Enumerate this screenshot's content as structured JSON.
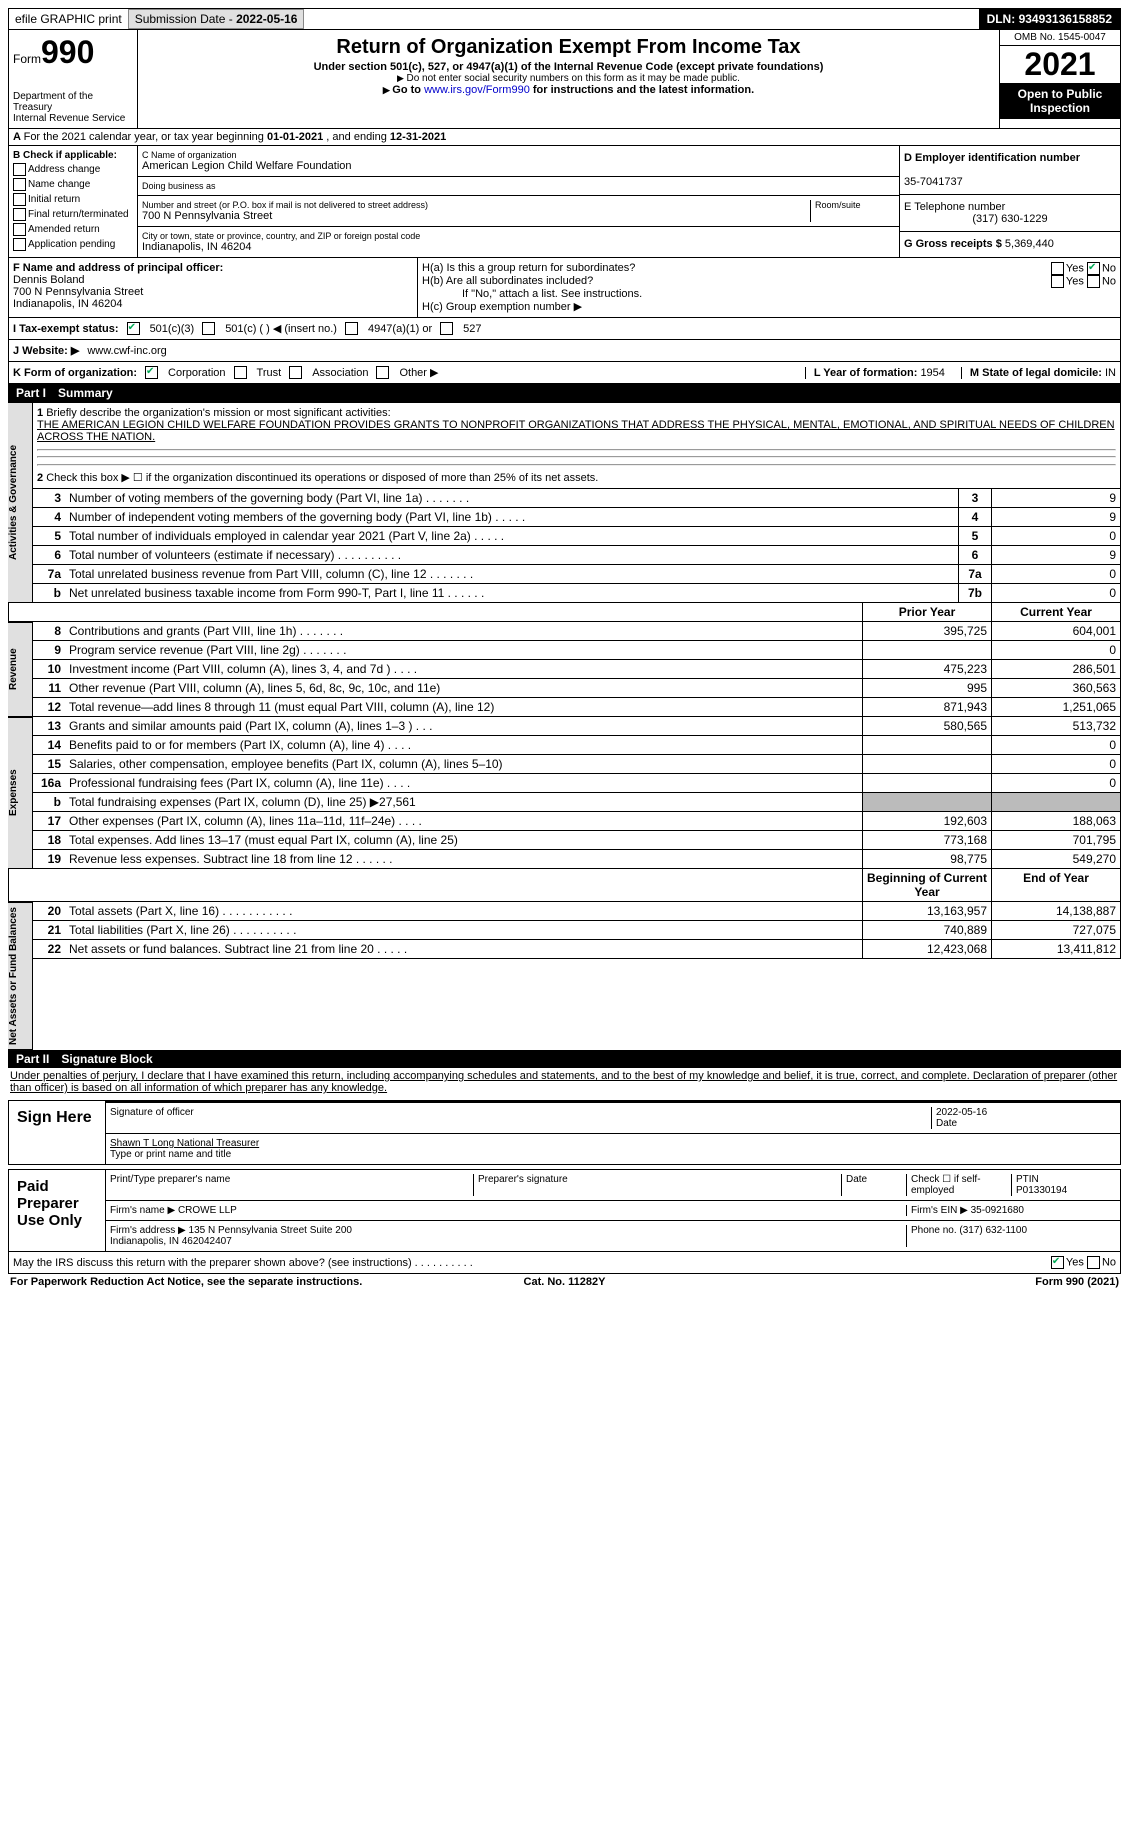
{
  "topbar": {
    "efile": "efile GRAPHIC print",
    "submission_label": "Submission Date - ",
    "submission_date": "2022-05-16",
    "dln_label": "DLN: ",
    "dln": "93493136158852"
  },
  "header": {
    "form_word": "Form",
    "form_number": "990",
    "dept": "Department of the Treasury\nInternal Revenue Service",
    "title": "Return of Organization Exempt From Income Tax",
    "subtitle": "Under section 501(c), 527, or 4947(a)(1) of the Internal Revenue Code (except private foundations)",
    "ssn_note": "Do not enter social security numbers on this form as it may be made public.",
    "goto_pre": "Go to ",
    "goto_link": "www.irs.gov/Form990",
    "goto_post": " for instructions and the latest information.",
    "omb": "OMB No. 1545-0047",
    "year": "2021",
    "public": "Open to Public Inspection"
  },
  "sectionA": {
    "text_pre": "For the 2021 calendar year, or tax year beginning ",
    "begin": "01-01-2021",
    "mid": " , and ending ",
    "end": "12-31-2021"
  },
  "B": {
    "label": "B Check if applicable:",
    "opts": [
      "Address change",
      "Name change",
      "Initial return",
      "Final return/terminated",
      "Amended return",
      "Application pending"
    ]
  },
  "C": {
    "name_label": "C Name of organization",
    "name": "American Legion Child Welfare Foundation",
    "dba_label": "Doing business as",
    "dba": "",
    "street_label": "Number and street (or P.O. box if mail is not delivered to street address)",
    "room_label": "Room/suite",
    "street": "700 N Pennsylvania Street",
    "city_label": "City or town, state or province, country, and ZIP or foreign postal code",
    "city": "Indianapolis, IN  46204"
  },
  "D": {
    "label": "D Employer identification number",
    "value": "35-7041737"
  },
  "E": {
    "label": "E Telephone number",
    "value": "(317) 630-1229"
  },
  "G": {
    "label": "G Gross receipts $ ",
    "value": "5,369,440"
  },
  "F": {
    "label": "F  Name and address of principal officer:",
    "name": "Dennis Boland",
    "street": "700 N Pennsylvania Street",
    "city": "Indianapolis, IN  46204"
  },
  "H": {
    "a": "H(a)  Is this a group return for subordinates?",
    "b": "H(b)  Are all subordinates included?",
    "b_note": "If \"No,\" attach a list. See instructions.",
    "c": "H(c)  Group exemption number ▶"
  },
  "I": {
    "label": "I  Tax-exempt status:",
    "opts": [
      "501(c)(3)",
      "501(c) (  ) ◀ (insert no.)",
      "4947(a)(1) or",
      "527"
    ]
  },
  "J": {
    "label": "J  Website: ▶",
    "value": "www.cwf-inc.org"
  },
  "K": {
    "label": "K Form of organization:",
    "opts": [
      "Corporation",
      "Trust",
      "Association",
      "Other ▶"
    ]
  },
  "L": {
    "label": "L Year of formation: ",
    "value": "1954"
  },
  "M": {
    "label": "M State of legal domicile: ",
    "value": "IN"
  },
  "part1": {
    "num": "Part I",
    "title": "Summary"
  },
  "summary": {
    "q1_label": "Briefly describe the organization's mission or most significant activities:",
    "q1_text": "THE AMERICAN LEGION CHILD WELFARE FOUNDATION PROVIDES GRANTS TO NONPROFIT ORGANIZATIONS THAT ADDRESS THE PHYSICAL, MENTAL, EMOTIONAL, AND SPIRITUAL NEEDS OF CHILDREN ACROSS THE NATION.",
    "q2": "Check this box ▶ ☐ if the organization discontinued its operations or disposed of more than 25% of its net assets.",
    "lines_top": [
      {
        "n": "3",
        "label": "Number of voting members of the governing body (Part VI, line 1a)  .    .    .    .    .    .    .",
        "box": "3",
        "val": "9"
      },
      {
        "n": "4",
        "label": "Number of independent voting members of the governing body (Part VI, line 1b)  .    .    .    .    .",
        "box": "4",
        "val": "9"
      },
      {
        "n": "5",
        "label": "Total number of individuals employed in calendar year 2021 (Part V, line 2a)  .    .    .    .    .",
        "box": "5",
        "val": "0"
      },
      {
        "n": "6",
        "label": "Total number of volunteers (estimate if necessary)    .    .    .    .    .    .    .    .    .    .",
        "box": "6",
        "val": "9"
      },
      {
        "n": "7a",
        "label": "Total unrelated business revenue from Part VIII, column (C), line 12  .    .    .    .    .    .    .",
        "box": "7a",
        "val": "0"
      },
      {
        "n": "b",
        "label": "Net unrelated business taxable income from Form 990-T, Part I, line 11  .    .    .    .    .    .",
        "box": "7b",
        "val": "0"
      }
    ],
    "col_hdr_prior": "Prior Year",
    "col_hdr_current": "Current Year",
    "revenue_label": "Revenue",
    "revenue": [
      {
        "n": "8",
        "label": "Contributions and grants (Part VIII, line 1h)   .    .    .    .    .    .    .",
        "prior": "395,725",
        "cur": "604,001"
      },
      {
        "n": "9",
        "label": "Program service revenue (Part VIII, line 2g)   .    .    .    .    .    .    .",
        "prior": "",
        "cur": "0"
      },
      {
        "n": "10",
        "label": "Investment income (Part VIII, column (A), lines 3, 4, and 7d )   .    .    .    .",
        "prior": "475,223",
        "cur": "286,501"
      },
      {
        "n": "11",
        "label": "Other revenue (Part VIII, column (A), lines 5, 6d, 8c, 9c, 10c, and 11e)",
        "prior": "995",
        "cur": "360,563"
      },
      {
        "n": "12",
        "label": "Total revenue—add lines 8 through 11 (must equal Part VIII, column (A), line 12)",
        "prior": "871,943",
        "cur": "1,251,065"
      }
    ],
    "expenses_label": "Expenses",
    "expenses": [
      {
        "n": "13",
        "label": "Grants and similar amounts paid (Part IX, column (A), lines 1–3 )   .    .    .",
        "prior": "580,565",
        "cur": "513,732"
      },
      {
        "n": "14",
        "label": "Benefits paid to or for members (Part IX, column (A), line 4)   .    .    .    .",
        "prior": "",
        "cur": "0"
      },
      {
        "n": "15",
        "label": "Salaries, other compensation, employee benefits (Part IX, column (A), lines 5–10)",
        "prior": "",
        "cur": "0"
      },
      {
        "n": "16a",
        "label": "Professional fundraising fees (Part IX, column (A), line 11e)   .    .    .    .",
        "prior": "",
        "cur": "0"
      },
      {
        "n": "b",
        "label": "Total fundraising expenses (Part IX, column (D), line 25) ▶27,561",
        "prior": "GREY",
        "cur": "GREY"
      },
      {
        "n": "17",
        "label": "Other expenses (Part IX, column (A), lines 11a–11d, 11f–24e)   .    .    .    .",
        "prior": "192,603",
        "cur": "188,063"
      },
      {
        "n": "18",
        "label": "Total expenses. Add lines 13–17 (must equal Part IX, column (A), line 25)",
        "prior": "773,168",
        "cur": "701,795"
      },
      {
        "n": "19",
        "label": "Revenue less expenses. Subtract line 18 from line 12  .    .    .    .    .    .",
        "prior": "98,775",
        "cur": "549,270"
      }
    ],
    "netassets_label": "Net Assets or Fund Balances",
    "col_hdr_begin": "Beginning of Current Year",
    "col_hdr_end": "End of Year",
    "netassets": [
      {
        "n": "20",
        "label": "Total assets (Part X, line 16)  .    .    .    .    .    .    .    .    .    .    .",
        "prior": "13,163,957",
        "cur": "14,138,887"
      },
      {
        "n": "21",
        "label": "Total liabilities (Part X, line 26)  .    .    .    .    .    .    .    .    .    .",
        "prior": "740,889",
        "cur": "727,075"
      },
      {
        "n": "22",
        "label": "Net assets or fund balances. Subtract line 21 from line 20  .    .    .    .    .",
        "prior": "12,423,068",
        "cur": "13,411,812"
      }
    ],
    "gov_label": "Activities & Governance"
  },
  "part2": {
    "num": "Part II",
    "title": "Signature Block"
  },
  "sig": {
    "penalties": "Under penalties of perjury, I declare that I have examined this return, including accompanying schedules and statements, and to the best of my knowledge and belief, it is true, correct, and complete. Declaration of preparer (other than officer) is based on all information of which preparer has any knowledge.",
    "sign_here": "Sign Here",
    "sig_officer": "Signature of officer",
    "sig_date": "2022-05-16",
    "date_label": "Date",
    "name_title": "Shawn T Long  National Treasurer",
    "name_label": "Type or print name and title",
    "paid_label": "Paid Preparer Use Only",
    "prep_name_label": "Print/Type preparer's name",
    "prep_sig_label": "Preparer's signature",
    "check_self": "Check ☐ if self-employed",
    "ptin_label": "PTIN",
    "ptin": "P01330194",
    "firm_name_label": "Firm's name   ▶ ",
    "firm_name": "CROWE LLP",
    "firm_ein_label": "Firm's EIN ▶ ",
    "firm_ein": "35-0921680",
    "firm_addr_label": "Firm's address ▶ ",
    "firm_addr": "135 N Pennsylvania Street Suite 200\nIndianapolis, IN  462042407",
    "phone_label": "Phone no. ",
    "phone": "(317) 632-1100",
    "discuss": "May the IRS discuss this return with the preparer shown above? (see instructions)    .    .    .    .    .    .    .    .    .    ."
  },
  "footer": {
    "left": "For Paperwork Reduction Act Notice, see the separate instructions.",
    "mid": "Cat. No. 11282Y",
    "right": "Form 990 (2021)"
  }
}
